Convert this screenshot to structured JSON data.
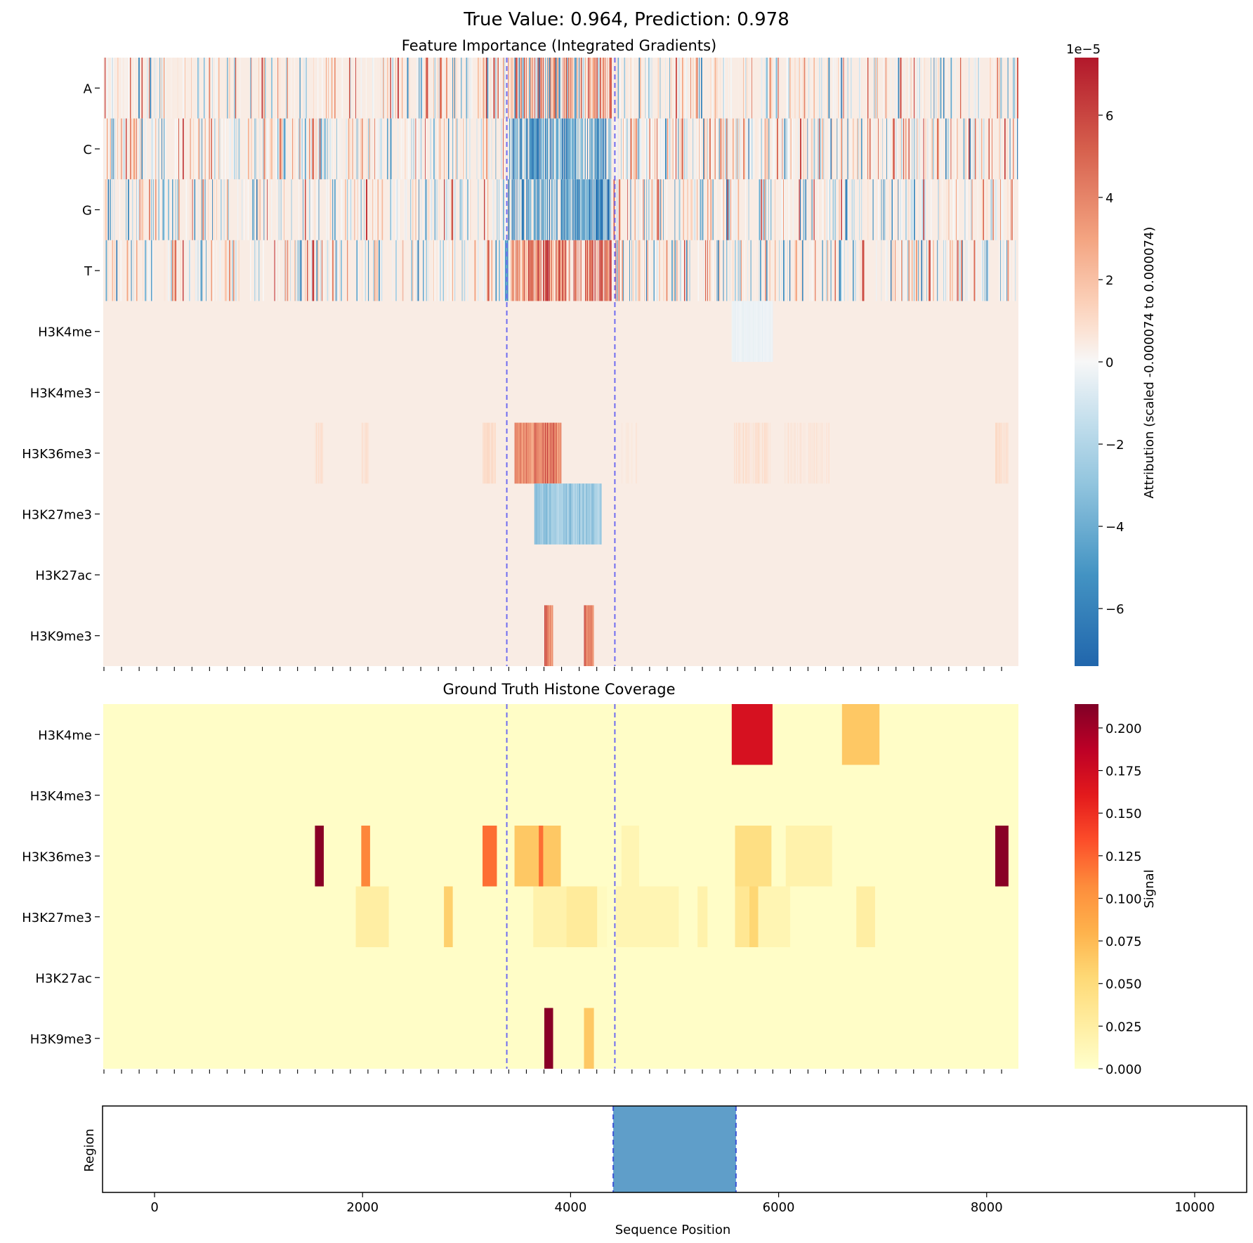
{
  "figure": {
    "suptitle": "True Value: 0.964, Prediction: 0.978"
  },
  "chart_data": [
    {
      "type": "heatmap",
      "title": "Feature Importance (Integrated Gradients)",
      "rows": [
        "A",
        "C",
        "G",
        "T",
        "H3K4me",
        "H3K4me3",
        "H3K36me3",
        "H3K27me3",
        "H3K27ac",
        "H3K9me3"
      ],
      "x_range": [
        0,
        8300
      ],
      "colormap": "RdBu_r",
      "colorbar": {
        "label": "Attribution (scaled -0.000074 to 0.000074)",
        "offset_text": "1e−5",
        "min": -7.4,
        "max": 7.4,
        "ticks": [
          6,
          4,
          2,
          0,
          -2,
          -4,
          -6
        ],
        "tick_labels": [
          "6",
          "4",
          "2",
          "0",
          "−2",
          "−4",
          "−6"
        ]
      },
      "background_value": 0.4,
      "sequence_rows_density": {
        "A": 0.35,
        "C": 0.55,
        "G": 0.45,
        "T": 0.4
      },
      "focus_region_x": [
        3700,
        4600
      ],
      "histone_segments": [
        {
          "row": "H3K4me",
          "start": 5700,
          "end": 6070,
          "value": -0.4
        },
        {
          "row": "H3K36me3",
          "start": 1920,
          "end": 2000,
          "value": 1.0
        },
        {
          "row": "H3K36me3",
          "start": 2340,
          "end": 2410,
          "value": 1.0
        },
        {
          "row": "H3K36me3",
          "start": 3440,
          "end": 3560,
          "value": 1.2
        },
        {
          "row": "H3K36me3",
          "start": 3730,
          "end": 4150,
          "value": 5.5
        },
        {
          "row": "H3K36me3",
          "start": 4700,
          "end": 4840,
          "value": 0.7
        },
        {
          "row": "H3K36me3",
          "start": 5720,
          "end": 6050,
          "value": 1.0
        },
        {
          "row": "H3K36me3",
          "start": 6180,
          "end": 6590,
          "value": 0.8
        },
        {
          "row": "H3K36me3",
          "start": 8090,
          "end": 8210,
          "value": 1.2
        },
        {
          "row": "H3K27me3",
          "start": 3910,
          "end": 4520,
          "value": -3.5
        },
        {
          "row": "H3K9me3",
          "start": 4000,
          "end": 4080,
          "value": 6.0
        },
        {
          "row": "H3K9me3",
          "start": 4360,
          "end": 4450,
          "value": 6.0
        }
      ],
      "vlines_x": [
        3660,
        4640
      ]
    },
    {
      "type": "heatmap",
      "title": "Ground Truth Histone Coverage",
      "rows": [
        "H3K4me",
        "H3K4me3",
        "H3K36me3",
        "H3K27me3",
        "H3K27ac",
        "H3K9me3"
      ],
      "x_range": [
        0,
        8300
      ],
      "colormap": "YlOrRd",
      "colorbar": {
        "label": "Signal",
        "min": 0,
        "max": 0.214,
        "ticks": [
          0.2,
          0.175,
          0.15,
          0.125,
          0.1,
          0.075,
          0.05,
          0.025,
          0.0
        ],
        "tick_labels": [
          "0.200",
          "0.175",
          "0.150",
          "0.125",
          "0.100",
          "0.075",
          "0.050",
          "0.025",
          "0.000"
        ]
      },
      "segments": [
        {
          "row": "H3K4me",
          "start": 5700,
          "end": 6070,
          "value": 0.17
        },
        {
          "row": "H3K4me",
          "start": 6700,
          "end": 7040,
          "value": 0.065
        },
        {
          "row": "H3K36me3",
          "start": 1920,
          "end": 2000,
          "value": 0.21
        },
        {
          "row": "H3K36me3",
          "start": 2340,
          "end": 2420,
          "value": 0.11
        },
        {
          "row": "H3K36me3",
          "start": 3440,
          "end": 3570,
          "value": 0.12
        },
        {
          "row": "H3K36me3",
          "start": 3730,
          "end": 4150,
          "value": 0.065
        },
        {
          "row": "H3K36me3",
          "start": 3950,
          "end": 3990,
          "value": 0.12
        },
        {
          "row": "H3K36me3",
          "start": 4700,
          "end": 4860,
          "value": 0.015
        },
        {
          "row": "H3K36me3",
          "start": 5730,
          "end": 6060,
          "value": 0.045
        },
        {
          "row": "H3K36me3",
          "start": 6190,
          "end": 6610,
          "value": 0.02
        },
        {
          "row": "H3K36me3",
          "start": 8090,
          "end": 8210,
          "value": 0.21
        },
        {
          "row": "H3K27me3",
          "start": 2290,
          "end": 2590,
          "value": 0.025
        },
        {
          "row": "H3K27me3",
          "start": 3090,
          "end": 3170,
          "value": 0.06
        },
        {
          "row": "H3K27me3",
          "start": 3900,
          "end": 4200,
          "value": 0.02
        },
        {
          "row": "H3K27me3",
          "start": 4200,
          "end": 4480,
          "value": 0.03
        },
        {
          "row": "H3K27me3",
          "start": 4480,
          "end": 4570,
          "value": 0.008
        },
        {
          "row": "H3K27me3",
          "start": 4650,
          "end": 5220,
          "value": 0.015
        },
        {
          "row": "H3K27me3",
          "start": 5390,
          "end": 5480,
          "value": 0.02
        },
        {
          "row": "H3K27me3",
          "start": 5730,
          "end": 5860,
          "value": 0.035
        },
        {
          "row": "H3K27me3",
          "start": 5860,
          "end": 5940,
          "value": 0.055
        },
        {
          "row": "H3K27me3",
          "start": 5940,
          "end": 6230,
          "value": 0.015
        },
        {
          "row": "H3K27me3",
          "start": 6830,
          "end": 7000,
          "value": 0.025
        },
        {
          "row": "H3K9me3",
          "start": 4000,
          "end": 4080,
          "value": 0.21
        },
        {
          "row": "H3K9me3",
          "start": 4360,
          "end": 4450,
          "value": 0.065
        }
      ],
      "vlines_x": [
        3660,
        4640
      ]
    },
    {
      "type": "area",
      "ylabel": "Region",
      "xlabel": "Sequence Position",
      "xlim": [
        -500,
        10500
      ],
      "xticks": [
        0,
        2000,
        4000,
        6000,
        8000,
        10000
      ],
      "xtick_labels": [
        "0",
        "2000",
        "4000",
        "6000",
        "8000",
        "10000"
      ],
      "region": {
        "start": 4410,
        "end": 5590,
        "color": "#5f9ec9"
      }
    }
  ]
}
